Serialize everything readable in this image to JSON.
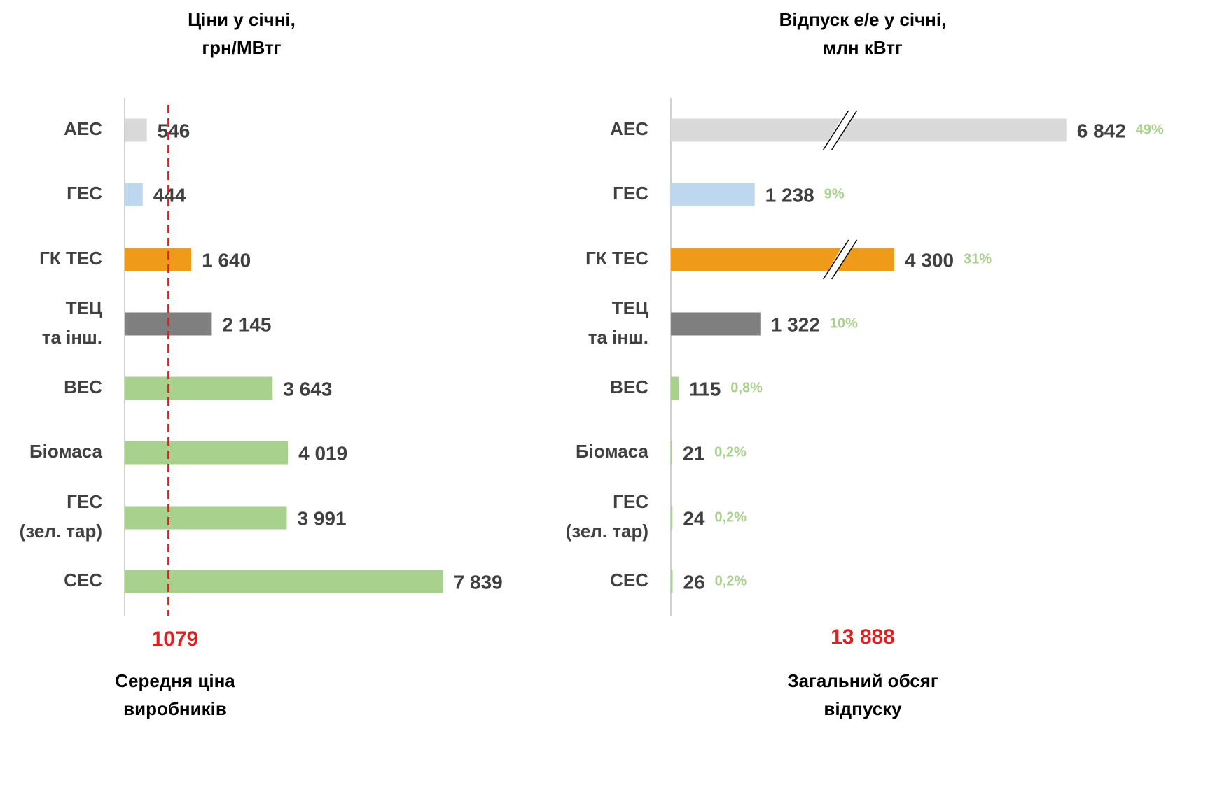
{
  "chart_data": [
    {
      "type": "bar",
      "title": "Ціни у січні,\nгрн/МВтг",
      "categories": [
        "АЕС",
        "ГЕС",
        "ГК ТЕС",
        "ТЕЦ\nта інш.",
        "ВЕС",
        "Біомаса",
        "ГЕС\n(зел. тар)",
        "СЕС"
      ],
      "values": [
        546,
        444,
        1640,
        2145,
        3643,
        4019,
        3991,
        7839
      ],
      "value_labels": [
        "546",
        "444",
        "1 640",
        "2 145",
        "3 643",
        "4 019",
        "3 991",
        "7 839"
      ],
      "colors": [
        "#d9d9d9",
        "#bdd7ee",
        "#f09a1a",
        "#7f7f7f",
        "#a9d18e",
        "#a9d18e",
        "#a9d18e",
        "#a9d18e"
      ],
      "xlim": [
        0,
        10000
      ],
      "reference": {
        "value": 1079,
        "color": "#e02020",
        "caption": "Середня ціна\nвиробників"
      }
    },
    {
      "type": "bar",
      "title": "Відпуск е/е у січні,\nмлн кВтг",
      "categories": [
        "АЕС",
        "ГЕС",
        "ГК ТЕС",
        "ТЕЦ\nта інш.",
        "ВЕС",
        "Біомаса",
        "ГЕС\n(зел. тар)",
        "СЕС"
      ],
      "values": [
        6842,
        1238,
        4300,
        1322,
        115,
        21,
        24,
        26
      ],
      "value_labels": [
        "6 842",
        "1 238",
        "4 300",
        "1 322",
        "115",
        "21",
        "24",
        "26"
      ],
      "share_labels": [
        "49%",
        "9%",
        "31%",
        "10%",
        "0,8%",
        "0,2%",
        "0,2%",
        "0,2%"
      ],
      "colors": [
        "#d9d9d9",
        "#bdd7ee",
        "#f09a1a",
        "#7f7f7f",
        "#a9d18e",
        "#a9d18e",
        "#a9d18e",
        "#a9d18e"
      ],
      "xlim": [
        0,
        6000
      ],
      "axis_break": [
        2500,
        3500
      ],
      "total": "13 888",
      "total_color": "#e02020",
      "total_caption": "Загальний обсяг\nвідпуску"
    }
  ]
}
